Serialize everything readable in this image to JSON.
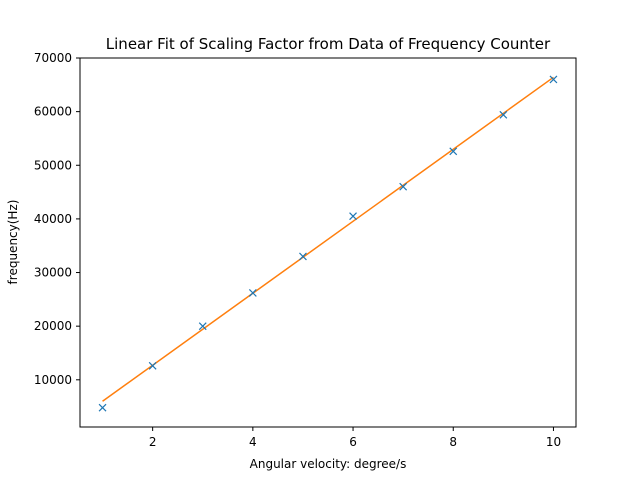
{
  "chart_data": {
    "type": "scatter",
    "title": "Linear Fit of Scaling Factor from Data of Frequency Counter",
    "xlabel": "Angular velocity: degree/s",
    "ylabel": "frequency(Hz)",
    "xlim": [
      0.55,
      10.45
    ],
    "ylim": [
      1200,
      70000
    ],
    "xticks": [
      2,
      4,
      6,
      8,
      10
    ],
    "yticks": [
      10000,
      20000,
      30000,
      40000,
      50000,
      60000,
      70000
    ],
    "xtick_labels": [
      "2",
      "4",
      "6",
      "8",
      "10"
    ],
    "ytick_labels": [
      "10000",
      "20000",
      "30000",
      "40000",
      "50000",
      "60000",
      "70000"
    ],
    "grid": false,
    "series": [
      {
        "kind": "scatter",
        "marker": "x",
        "color": "#1f77b4",
        "x": [
          1,
          2,
          3,
          4,
          5,
          6,
          7,
          8,
          9,
          10
        ],
        "y": [
          4800,
          12600,
          20000,
          26200,
          33000,
          40500,
          46000,
          52600,
          59400,
          66000
        ]
      },
      {
        "kind": "line",
        "color": "#ff7f0e",
        "x": [
          1,
          10
        ],
        "y": [
          6000,
          66400
        ]
      }
    ]
  }
}
